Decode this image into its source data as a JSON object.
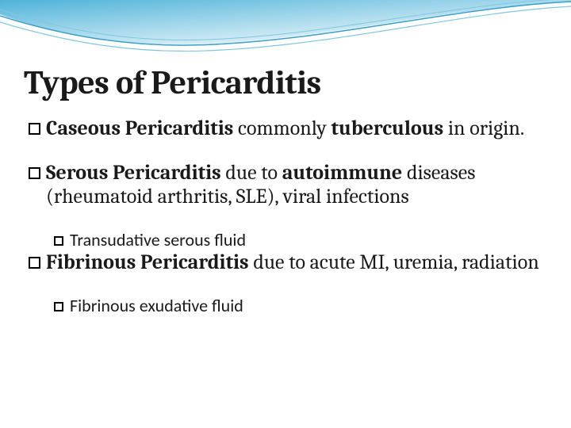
{
  "slide": {
    "title": "Types of Pericarditis",
    "title_fontsize": 42,
    "title_color": "#1a1a1a",
    "body_color": "#1a1a1a",
    "l1_fontsize": 26,
    "l2_fontsize": 22,
    "l1_bullet_size": 15,
    "l2_bullet_size": 12,
    "items": [
      {
        "runs": [
          {
            "text": "Caseous Pericarditis",
            "bold": true
          },
          {
            "text": " commonly ",
            "bold": false
          },
          {
            "text": "tuberculous",
            "bold": true
          },
          {
            "text": " in origin.",
            "bold": false
          }
        ],
        "sub": []
      },
      {
        "runs": [
          {
            "text": "Serous Pericarditis",
            "bold": true
          },
          {
            "text": " due to ",
            "bold": false
          },
          {
            "text": "autoimmune",
            "bold": true
          },
          {
            "text": " diseases (rheumatoid arthritis, SLE), viral infections",
            "bold": false
          }
        ],
        "sub": [
          {
            "text": "Transudative serous fluid"
          }
        ]
      },
      {
        "runs": [
          {
            "text": "Fibrinous Pericarditis",
            "bold": true
          },
          {
            "text": " due to acute MI, uremia, radiation",
            "bold": false
          }
        ],
        "sub": [
          {
            "text": "Fibrinous exudative fluid"
          }
        ]
      }
    ]
  },
  "decoration": {
    "gradient_from": "#4fb3d9",
    "gradient_to": "#ffffff",
    "line_color": "#3a9ec7",
    "line_alt_color": "#7fc8e0"
  }
}
